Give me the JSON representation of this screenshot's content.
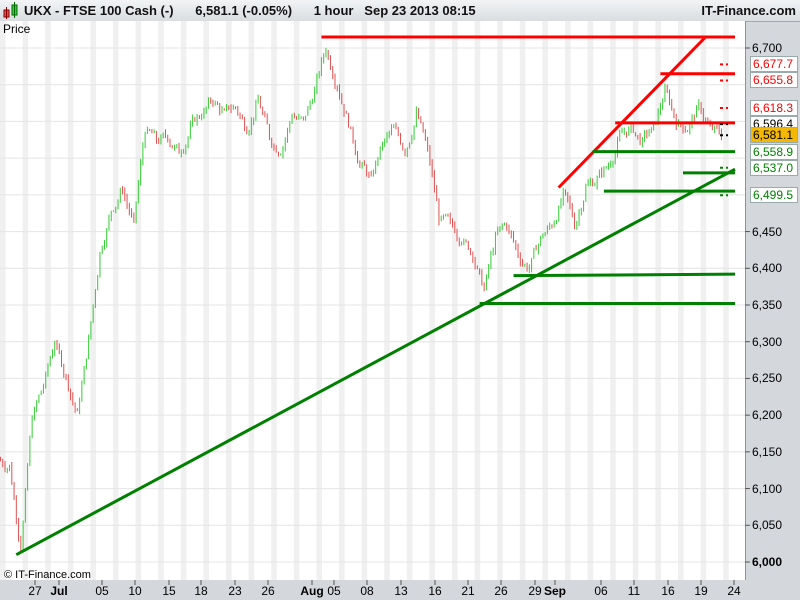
{
  "header": {
    "symbol": "UKX - FTSE 100 Cash (-)",
    "last": "6,581.1 (-0.05%)",
    "interval": "1 hour",
    "datetime": "Sep 23 2013 08:15",
    "site": "IT-Finance.com"
  },
  "price_label": "Price",
  "copyright": "© IT-Finance.com",
  "chart_data": {
    "type": "candlestick",
    "ylim": [
      6000,
      6700
    ],
    "y_ticks": [
      "6,000",
      "6,050",
      "6,100",
      "6,150",
      "6,200",
      "6,250",
      "6,300",
      "6,350",
      "6,400",
      "6,450",
      "6,700"
    ],
    "x_ticks": [
      "27",
      "Jul",
      "05",
      "10",
      "15",
      "18",
      "23",
      "26",
      "Aug",
      "05",
      "08",
      "13",
      "16",
      "21",
      "26",
      "29",
      "Sep",
      "06",
      "11",
      "16",
      "19",
      "24"
    ],
    "closes": [
      6130,
      6020,
      6200,
      6240,
      6300,
      6250,
      6200,
      6300,
      6420,
      6480,
      6510,
      6460,
      6590,
      6575,
      6580,
      6560,
      6590,
      6610,
      6630,
      6610,
      6620,
      6590,
      6630,
      6580,
      6560,
      6610,
      6600,
      6640,
      6700,
      6650,
      6600,
      6540,
      6520,
      6570,
      6590,
      6560,
      6610,
      6560,
      6470,
      6460,
      6440,
      6420,
      6370,
      6440,
      6460,
      6420,
      6400,
      6440,
      6460,
      6500,
      6460,
      6510,
      6520,
      6540,
      6580,
      6590,
      6570,
      6590,
      6640,
      6600,
      6590,
      6620,
      6590,
      6581
    ],
    "up_color": "#33cc33",
    "down_color": "#e05050",
    "trendlines": [
      {
        "color": "#008000",
        "from": [
          1,
          6010
        ],
        "to": [
          65,
          6535
        ]
      },
      {
        "color": "#ff0000",
        "from": [
          49,
          6510
        ],
        "to": [
          62,
          6715
        ]
      },
      {
        "color": "#ff0000",
        "from": [
          28,
          6715
        ],
        "to": [
          65,
          6715
        ]
      },
      {
        "color": "#ff0000",
        "from": [
          58,
          6665
        ],
        "to": [
          65,
          6665
        ]
      },
      {
        "color": "#ff0000",
        "from": [
          54,
          6598
        ],
        "to": [
          65,
          6598
        ]
      },
      {
        "color": "#008000",
        "from": [
          52,
          6558.9
        ],
        "to": [
          65,
          6558.9
        ]
      },
      {
        "color": "#008000",
        "from": [
          60,
          6530
        ],
        "to": [
          65,
          6530
        ]
      },
      {
        "color": "#008000",
        "from": [
          53,
          6505
        ],
        "to": [
          65,
          6505
        ]
      },
      {
        "color": "#008000",
        "from": [
          45,
          6390
        ],
        "to": [
          65,
          6392
        ]
      },
      {
        "color": "#008000",
        "from": [
          42,
          6352
        ],
        "to": [
          65,
          6352
        ]
      }
    ],
    "level_boxes": [
      {
        "value": 6677.7,
        "label": "6,677.7",
        "color": "#ff0000",
        "bg": "#ffffff"
      },
      {
        "value": 6655.8,
        "label": "6,655.8",
        "color": "#ff0000",
        "bg": "#ffffff"
      },
      {
        "value": 6618.3,
        "label": "6,618.3",
        "color": "#ff0000",
        "bg": "#ffffff"
      },
      {
        "value": 6596.4,
        "label": "6,596.4",
        "color": "#000000",
        "bg": "#ffffff"
      },
      {
        "value": 6581.1,
        "label": "6,581.1",
        "color": "#000000",
        "bg": "#f5b800"
      },
      {
        "value": 6558.9,
        "label": "6,558.9",
        "color": "#008000",
        "bg": "#ffffff"
      },
      {
        "value": 6537.0,
        "label": "6,537.0",
        "color": "#008000",
        "bg": "#ffffff"
      },
      {
        "value": 6499.5,
        "label": "6,499.5",
        "color": "#008000",
        "bg": "#ffffff"
      }
    ]
  }
}
